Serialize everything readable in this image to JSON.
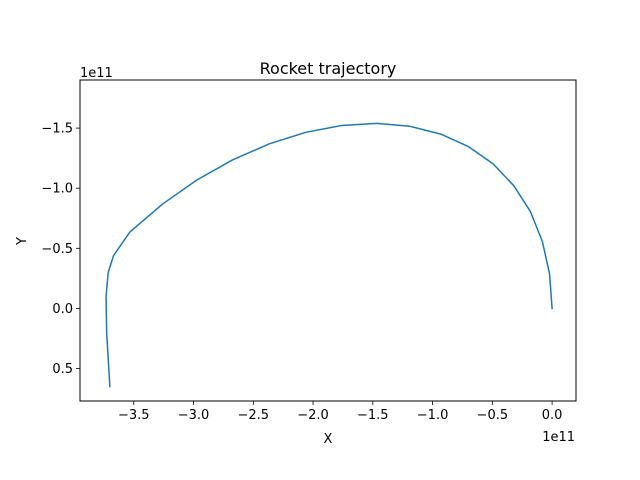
{
  "chart_data": {
    "type": "line",
    "title": "Rocket trajectory",
    "xlabel": "X",
    "ylabel": "Y",
    "x_offset_label": "1e11",
    "y_offset_label": "1e11",
    "xlim": [
      -3.95,
      0.2
    ],
    "ylim": [
      0.77,
      -1.9
    ],
    "y_inverted": true,
    "grid": false,
    "xticks": [
      -3.5,
      -3.0,
      -2.5,
      -2.0,
      -1.5,
      -1.0,
      -0.5,
      0.0
    ],
    "xtick_labels": [
      "−3.5",
      "−3.0",
      "−2.5",
      "−2.0",
      "−1.5",
      "−1.0",
      "−0.5",
      "0.0"
    ],
    "yticks": [
      -1.5,
      -1.0,
      -0.5,
      0.0,
      0.5
    ],
    "ytick_labels": [
      "−1.5",
      "−1.0",
      "−0.5",
      "0.0",
      "0.5"
    ],
    "series": [
      {
        "color": "#1f77b4",
        "x": [
          0.0,
          -0.021,
          -0.082,
          -0.182,
          -0.32,
          -0.493,
          -0.698,
          -0.931,
          -1.189,
          -1.466,
          -1.759,
          -2.061,
          -2.368,
          -2.674,
          -2.974,
          -3.262,
          -3.533,
          -3.669,
          -3.714,
          -3.732,
          -3.727,
          -3.7
        ],
        "y": [
          0.0,
          -0.286,
          -0.559,
          -0.807,
          -1.02,
          -1.202,
          -1.345,
          -1.45,
          -1.515,
          -1.539,
          -1.522,
          -1.465,
          -1.368,
          -1.235,
          -1.067,
          -0.866,
          -0.635,
          -0.44,
          -0.3,
          -0.1,
          0.2,
          0.65
        ]
      }
    ]
  }
}
